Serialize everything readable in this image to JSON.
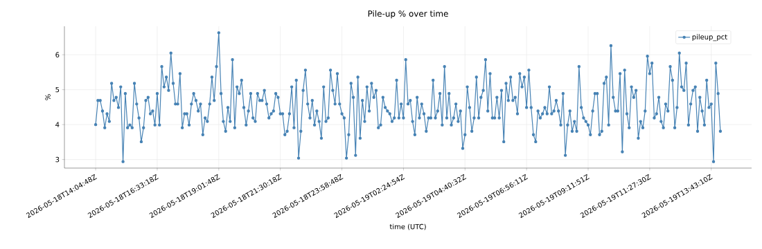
{
  "chart_data": {
    "type": "line",
    "title": "Pile-up % over time",
    "xlabel": "time (UTC)",
    "ylabel": "%",
    "categories": [
      "2026-05-18T14:04:48Z",
      null,
      null,
      null,
      null,
      null,
      null,
      null,
      null,
      null,
      null,
      null,
      null,
      null,
      null,
      null,
      null,
      null,
      null,
      null,
      null,
      null,
      null,
      null,
      null,
      null,
      null,
      "2026-05-18T16:33:18Z",
      null,
      null,
      null,
      null,
      null,
      null,
      null,
      null,
      null,
      null,
      null,
      null,
      null,
      null,
      null,
      null,
      null,
      null,
      null,
      null,
      null,
      null,
      null,
      null,
      null,
      null,
      "2026-05-18T19:01:48Z",
      null,
      null,
      null,
      null,
      null,
      null,
      null,
      null,
      null,
      null,
      null,
      null,
      null,
      null,
      null,
      null,
      null,
      null,
      null,
      null,
      null,
      null,
      null,
      null,
      null,
      null,
      "2026-05-18T21:30:18Z",
      null,
      null,
      null,
      null,
      null,
      null,
      null,
      null,
      null,
      null,
      null,
      null,
      null,
      null,
      null,
      null,
      null,
      null,
      null,
      null,
      null,
      null,
      null,
      null,
      null,
      null,
      "2026-05-18T23:58:48Z",
      null,
      null,
      null,
      null,
      null,
      null,
      null,
      null,
      null,
      null,
      null,
      null,
      null,
      null,
      null,
      null,
      null,
      null,
      null,
      null,
      null,
      null,
      null,
      null,
      null,
      null,
      "2026-05-19T02:24:54Z",
      null,
      null,
      null,
      null,
      null,
      null,
      null,
      null,
      null,
      null,
      null,
      null,
      null,
      null,
      null,
      null,
      null,
      null,
      null,
      null,
      null,
      null,
      null,
      null,
      null,
      null,
      "2026-05-19T04:40:32Z",
      null,
      null,
      null,
      null,
      null,
      null,
      null,
      null,
      null,
      null,
      null,
      null,
      null,
      null,
      null,
      null,
      null,
      null,
      null,
      null,
      null,
      null,
      null,
      null,
      null,
      null,
      "2026-05-19T06:56:11Z",
      null,
      null,
      null,
      null,
      null,
      null,
      null,
      null,
      null,
      null,
      null,
      null,
      null,
      null,
      null,
      null,
      null,
      null,
      null,
      null,
      null,
      null,
      null,
      null,
      null,
      null,
      "2026-05-19T09:11:51Z",
      null,
      null,
      null,
      null,
      null,
      null,
      null,
      null,
      null,
      null,
      null,
      null,
      null,
      null,
      null,
      null,
      null,
      null,
      null,
      null,
      null,
      null,
      null,
      null,
      null,
      null,
      "2026-05-19T11:27:30Z",
      null,
      null,
      null,
      null,
      null,
      null,
      null,
      null,
      null,
      null,
      null,
      null,
      null,
      null,
      null,
      null,
      null,
      null,
      null,
      null,
      null,
      null,
      null,
      null,
      null,
      null,
      "2026-05-19T13:43:10Z",
      null,
      null,
      null,
      null
    ],
    "series": [
      {
        "name": "pileup_pct",
        "color": "#4682b4",
        "values": [
          4.0,
          4.69,
          4.69,
          4.39,
          3.91,
          4.31,
          4.09,
          5.18,
          4.69,
          4.78,
          4.49,
          5.08,
          2.94,
          4.89,
          3.91,
          3.99,
          3.91,
          5.18,
          4.59,
          4.19,
          3.51,
          3.91,
          4.69,
          4.78,
          4.31,
          4.39,
          3.99,
          4.89,
          3.99,
          5.66,
          5.08,
          5.36,
          4.98,
          6.05,
          5.18,
          4.59,
          4.59,
          5.46,
          3.91,
          4.31,
          4.31,
          3.99,
          4.59,
          4.89,
          4.69,
          4.39,
          4.59,
          3.71,
          4.19,
          4.09,
          4.59,
          5.36,
          4.69,
          5.66,
          6.63,
          4.89,
          4.09,
          3.81,
          4.49,
          4.09,
          5.86,
          3.91,
          5.08,
          4.89,
          5.27,
          4.49,
          3.99,
          4.39,
          4.89,
          4.19,
          4.09,
          4.89,
          4.69,
          4.69,
          4.98,
          4.59,
          4.19,
          4.31,
          4.39,
          4.89,
          4.78,
          4.31,
          4.31,
          3.71,
          3.81,
          4.31,
          5.08,
          3.91,
          5.27,
          3.04,
          3.81,
          4.98,
          5.56,
          4.59,
          4.19,
          4.69,
          3.99,
          4.39,
          4.09,
          3.61,
          5.08,
          4.09,
          4.19,
          5.56,
          4.98,
          4.59,
          5.46,
          4.59,
          4.31,
          4.19,
          3.04,
          3.71,
          5.18,
          4.78,
          3.12,
          5.36,
          3.61,
          4.69,
          4.09,
          5.08,
          4.39,
          5.18,
          4.78,
          4.98,
          3.91,
          3.99,
          4.78,
          4.49,
          4.39,
          4.31,
          4.09,
          4.19,
          5.27,
          4.19,
          4.59,
          4.19,
          5.86,
          4.59,
          4.69,
          4.09,
          3.71,
          4.78,
          4.19,
          4.59,
          4.31,
          3.81,
          4.19,
          4.19,
          5.27,
          4.19,
          4.39,
          4.89,
          3.99,
          5.66,
          4.19,
          4.89,
          3.99,
          4.19,
          4.59,
          4.09,
          4.39,
          3.32,
          3.71,
          5.08,
          4.49,
          3.81,
          4.19,
          5.36,
          4.19,
          4.78,
          4.98,
          5.86,
          4.39,
          5.46,
          4.19,
          4.19,
          4.78,
          4.19,
          4.98,
          3.51,
          5.18,
          4.69,
          5.36,
          4.69,
          4.78,
          4.31,
          5.46,
          5.08,
          5.36,
          4.49,
          5.56,
          4.49,
          3.71,
          3.51,
          4.39,
          4.19,
          4.31,
          4.49,
          4.31,
          5.08,
          4.31,
          4.39,
          4.69,
          4.39,
          3.99,
          4.89,
          3.12,
          3.99,
          4.39,
          3.81,
          4.09,
          3.81,
          5.66,
          4.49,
          4.19,
          4.09,
          3.99,
          3.71,
          4.39,
          4.89,
          4.89,
          3.71,
          3.81,
          5.18,
          5.36,
          3.99,
          6.26,
          4.78,
          4.39,
          4.39,
          5.46,
          3.22,
          5.56,
          4.31,
          3.91,
          5.08,
          4.78,
          4.98,
          3.61,
          4.09,
          3.91,
          4.39,
          5.96,
          5.46,
          5.76,
          4.19,
          4.31,
          4.78,
          4.09,
          3.91,
          4.59,
          4.39,
          5.66,
          5.27,
          3.91,
          4.49,
          6.05,
          5.08,
          4.98,
          5.76,
          3.99,
          4.59,
          4.98,
          5.08,
          3.81,
          4.78,
          4.39,
          3.99,
          5.27,
          4.49,
          4.59,
          2.94,
          5.76,
          4.89,
          3.81
        ]
      }
    ],
    "ylim": [
      2.755,
      6.815
    ],
    "yticks": [
      3,
      4,
      5,
      6
    ],
    "grid": true,
    "legend": "top right",
    "marker": "circle",
    "line_style": "solid"
  }
}
